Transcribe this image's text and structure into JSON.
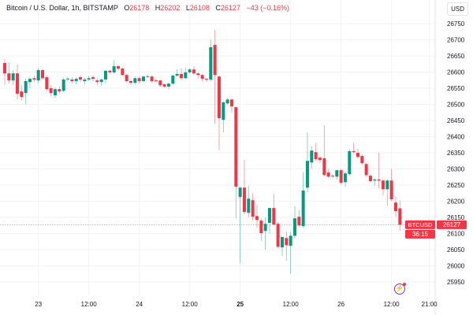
{
  "header": {
    "symbol_title": "Bitcoin / U.S. Dollar, 1h, BITSTAMP",
    "o_label": "O",
    "o": "26178",
    "h_label": "H",
    "h": "26202",
    "l_label": "L",
    "l": "26108",
    "c_label": "C",
    "c": "26127",
    "change": "−43 (−0.16%)"
  },
  "currency_button": "USD",
  "price_tag": {
    "symbol": "BTCUSD",
    "price": "26127",
    "countdown": "36:15"
  },
  "colors": {
    "up": "#089981",
    "down": "#f23645",
    "grid": "#f3f3f5",
    "indicator_icon": "#9c27b0"
  },
  "icons": {
    "indicator": "lightning-icon"
  },
  "chart_data": {
    "type": "candlestick",
    "interval": "1h",
    "first_candle": "22 16:00",
    "ylim": [
      25925,
      26775
    ],
    "grid": true,
    "y_ticks": [
      25950,
      26000,
      26050,
      26100,
      26150,
      26200,
      26250,
      26300,
      26350,
      26400,
      26450,
      26500,
      26550,
      26600,
      26650,
      26700,
      26750
    ],
    "x_ticks": [
      {
        "label": "23",
        "at": "23 00:00",
        "bold": false
      },
      {
        "label": "12:00",
        "at": "23 12:00",
        "bold": false
      },
      {
        "label": "24",
        "at": "24 00:00",
        "bold": false
      },
      {
        "label": "12:00",
        "at": "24 12:00",
        "bold": false
      },
      {
        "label": "25",
        "at": "25 00:00",
        "bold": true
      },
      {
        "label": "12:00",
        "at": "25 12:00",
        "bold": false
      },
      {
        "label": "26",
        "at": "26 00:00",
        "bold": false
      },
      {
        "label": "12:00",
        "at": "26 12:00",
        "bold": false
      },
      {
        "label": "21:00",
        "at": "26 21:00",
        "bold": false
      }
    ],
    "last_price": 26127,
    "ohlc": [
      [
        26628,
        26640,
        26560,
        26596
      ],
      [
        26596,
        26630,
        26565,
        26574
      ],
      [
        26574,
        26605,
        26560,
        26596
      ],
      [
        26596,
        26625,
        26515,
        26533
      ],
      [
        26540,
        26560,
        26512,
        26523
      ],
      [
        26535,
        26580,
        26500,
        26572
      ],
      [
        26569,
        26585,
        26550,
        26579
      ],
      [
        26581,
        26590,
        26568,
        26577
      ],
      [
        26574,
        26612,
        26565,
        26606
      ],
      [
        26606,
        26610,
        26575,
        26581
      ],
      [
        26584,
        26590,
        26542,
        26547
      ],
      [
        26550,
        26560,
        26525,
        26535
      ],
      [
        26528,
        26552,
        26520,
        26547
      ],
      [
        26547,
        26555,
        26535,
        26540
      ],
      [
        26542,
        26582,
        26538,
        26577
      ],
      [
        26579,
        26585,
        26570,
        26580
      ],
      [
        26577,
        26584,
        26564,
        26572
      ],
      [
        26572,
        26583,
        26562,
        26579
      ],
      [
        26584,
        26588,
        26570,
        26577
      ],
      [
        26572,
        26582,
        26562,
        26577
      ],
      [
        26577,
        26588,
        26572,
        26581
      ],
      [
        26584,
        26590,
        26572,
        26579
      ],
      [
        26574,
        26580,
        26560,
        26569
      ],
      [
        26569,
        26580,
        26558,
        26577
      ],
      [
        26577,
        26606,
        26565,
        26604
      ],
      [
        26604,
        26608,
        26594,
        26599
      ],
      [
        26599,
        26636,
        26595,
        26618
      ],
      [
        26618,
        26622,
        26605,
        26611
      ],
      [
        26611,
        26614,
        26588,
        26591
      ],
      [
        26591,
        26595,
        26568,
        26572
      ],
      [
        26572,
        26576,
        26562,
        26567
      ],
      [
        26567,
        26586,
        26562,
        26581
      ],
      [
        26581,
        26586,
        26566,
        26572
      ],
      [
        26572,
        26590,
        26568,
        26586
      ],
      [
        26586,
        26592,
        26582,
        26587
      ],
      [
        26586,
        26590,
        26568,
        26572
      ],
      [
        26574,
        26580,
        26568,
        26573
      ],
      [
        26574,
        26576,
        26555,
        26559
      ],
      [
        26562,
        26565,
        26550,
        26555
      ],
      [
        26555,
        26568,
        26548,
        26564
      ],
      [
        26564,
        26592,
        26560,
        26589
      ],
      [
        26589,
        26608,
        26585,
        26594
      ],
      [
        26594,
        26612,
        26576,
        26581
      ],
      [
        26581,
        26614,
        26578,
        26599
      ],
      [
        26599,
        26612,
        26595,
        26608
      ],
      [
        26608,
        26618,
        26592,
        26596
      ],
      [
        26596,
        26600,
        26580,
        26591
      ],
      [
        26591,
        26594,
        26572,
        26579
      ],
      [
        26579,
        26582,
        26570,
        26577
      ],
      [
        26577,
        26700,
        26572,
        26677
      ],
      [
        26684,
        26730,
        26440,
        26591
      ],
      [
        26586,
        26590,
        26359,
        26457
      ],
      [
        26452,
        26510,
        26413,
        26506
      ],
      [
        26503,
        26520,
        26498,
        26515
      ],
      [
        26515,
        26518,
        26474,
        26494
      ],
      [
        26491,
        26494,
        26147,
        26245
      ],
      [
        26213,
        26245,
        26008,
        26242
      ],
      [
        26242,
        26328,
        26160,
        26167
      ],
      [
        26164,
        26247,
        26150,
        26208
      ],
      [
        26203,
        26225,
        26140,
        26152
      ],
      [
        26154,
        26190,
        26118,
        26142
      ],
      [
        26140,
        26146,
        26078,
        26101
      ],
      [
        26108,
        26150,
        26050,
        26130
      ],
      [
        26133,
        26179,
        26100,
        26179
      ],
      [
        26179,
        26224,
        26125,
        26128
      ],
      [
        26130,
        26135,
        26055,
        26059
      ],
      [
        26057,
        26092,
        26030,
        26089
      ],
      [
        26086,
        26105,
        26016,
        26064
      ],
      [
        26062,
        26105,
        25976,
        26093
      ],
      [
        26093,
        26185,
        26085,
        26147
      ],
      [
        26152,
        26173,
        26120,
        26125
      ],
      [
        26123,
        26290,
        26118,
        26233
      ],
      [
        26242,
        26413,
        26228,
        26325
      ],
      [
        26320,
        26370,
        26300,
        26357
      ],
      [
        26352,
        26381,
        26325,
        26330
      ],
      [
        26335,
        26340,
        26318,
        26328
      ],
      [
        26333,
        26435,
        26278,
        26281
      ],
      [
        26289,
        26300,
        26272,
        26276
      ],
      [
        26279,
        26284,
        26272,
        26278
      ],
      [
        26276,
        26296,
        26266,
        26296
      ],
      [
        26296,
        26300,
        26252,
        26257
      ],
      [
        26259,
        26292,
        26245,
        26286
      ],
      [
        26284,
        26359,
        26280,
        26355
      ],
      [
        26355,
        26381,
        26348,
        26352
      ],
      [
        26350,
        26362,
        26332,
        26337
      ],
      [
        26340,
        26345,
        26312,
        26318
      ],
      [
        26315,
        26320,
        26276,
        26281
      ],
      [
        26279,
        26284,
        26258,
        26262
      ],
      [
        26264,
        26270,
        26248,
        26267
      ],
      [
        26267,
        26350,
        26240,
        26264
      ],
      [
        26264,
        26268,
        26217,
        26237
      ],
      [
        26237,
        26268,
        26186,
        26264
      ],
      [
        26264,
        26300,
        26200,
        26206
      ],
      [
        26196,
        26215,
        26152,
        26169
      ],
      [
        26178,
        26202,
        26108,
        26127
      ]
    ]
  }
}
